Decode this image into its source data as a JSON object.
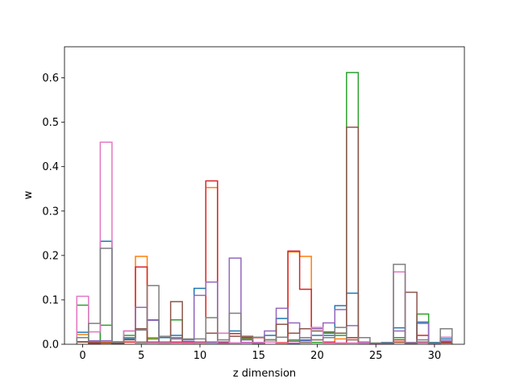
{
  "chart_data": {
    "type": "step-histogram",
    "xlabel": "z dimension",
    "ylabel": "w",
    "xlim": [
      -1.55,
      32.55
    ],
    "ylim": [
      0,
      0.67
    ],
    "x_ticks": [
      0,
      5,
      10,
      15,
      20,
      25,
      30
    ],
    "y_ticks": [
      0.0,
      0.1,
      0.2,
      0.3,
      0.4,
      0.5,
      0.6
    ],
    "bin_width": 1,
    "x": [
      0,
      1,
      2,
      3,
      4,
      5,
      6,
      7,
      8,
      9,
      10,
      11,
      12,
      13,
      14,
      15,
      16,
      17,
      18,
      19,
      20,
      21,
      22,
      23,
      24,
      25,
      26,
      27,
      28,
      29,
      30,
      31
    ],
    "series": [
      {
        "color": "#1f77b4",
        "values": [
          0.027,
          0.007,
          0.232,
          0.003,
          0.012,
          0.003,
          0.055,
          0.015,
          0.02,
          0.01,
          0.126,
          0.005,
          0.003,
          0.03,
          0.01,
          0.003,
          0.02,
          0.058,
          0.002,
          0.008,
          0.02,
          0.02,
          0.087,
          0.115,
          0.005,
          0.001,
          0.004,
          0.037,
          0.004,
          0.05,
          0.004,
          0.012
        ]
      },
      {
        "color": "#ff7f0e",
        "values": [
          0.022,
          0.005,
          0.005,
          0.002,
          0.015,
          0.198,
          0.015,
          0.005,
          0.005,
          0.004,
          0.003,
          0.353,
          0.005,
          0.024,
          0.004,
          0.002,
          0.01,
          0.004,
          0.208,
          0.198,
          0.004,
          0.004,
          0.012,
          0.01,
          0.004,
          0.001,
          0.002,
          0.004,
          0.004,
          0.004,
          0.002,
          0.004
        ]
      },
      {
        "color": "#2ca02c",
        "values": [
          0.088,
          0.004,
          0.043,
          0.003,
          0.02,
          0.005,
          0.012,
          0.004,
          0.055,
          0.006,
          0.005,
          0.003,
          0.003,
          0.003,
          0.012,
          0.002,
          0.01,
          0.003,
          0.007,
          0.004,
          0.004,
          0.028,
          0.02,
          0.612,
          0.005,
          0.001,
          0.002,
          0.015,
          0.002,
          0.068,
          0.002,
          0.005
        ]
      },
      {
        "color": "#d62728",
        "values": [
          0.005,
          0.002,
          0.003,
          0.002,
          0.005,
          0.174,
          0.005,
          0.003,
          0.005,
          0.004,
          0.005,
          0.368,
          0.005,
          0.024,
          0.015,
          0.015,
          0.005,
          0.003,
          0.21,
          0.124,
          0.01,
          0.005,
          0.003,
          0.015,
          0.003,
          0.001,
          0.003,
          0.01,
          0.003,
          0.02,
          0.002,
          0.005
        ]
      },
      {
        "color": "#9467bd",
        "values": [
          0.006,
          0.008,
          0.008,
          0.004,
          0.03,
          0.083,
          0.054,
          0.004,
          0.015,
          0.01,
          0.11,
          0.14,
          0.003,
          0.194,
          0.004,
          0.004,
          0.03,
          0.081,
          0.048,
          0.01,
          0.035,
          0.048,
          0.078,
          0.042,
          0.004,
          0.002,
          0.003,
          0.03,
          0.004,
          0.047,
          0.002,
          0.008
        ]
      },
      {
        "color": "#8c564b",
        "values": [
          0.005,
          0.004,
          0.003,
          0.002,
          0.01,
          0.035,
          0.005,
          0.005,
          0.096,
          0.003,
          0.005,
          0.025,
          0.025,
          0.018,
          0.018,
          0.003,
          0.01,
          0.045,
          0.025,
          0.035,
          0.03,
          0.025,
          0.025,
          0.489,
          0.003,
          0.001,
          0.002,
          0.005,
          0.117,
          0.005,
          0.001,
          0.003
        ]
      },
      {
        "color": "#e377c2",
        "values": [
          0.108,
          0.028,
          0.455,
          0.006,
          0.03,
          0.003,
          0.003,
          0.003,
          0.003,
          0.003,
          0.003,
          0.003,
          0.025,
          0.003,
          0.003,
          0.003,
          0.005,
          0.003,
          0.003,
          0.003,
          0.038,
          0.003,
          0.003,
          0.003,
          0.003,
          0.001,
          0.003,
          0.163,
          0.003,
          0.003,
          0.001,
          0.016
        ]
      },
      {
        "color": "#7f7f7f",
        "values": [
          0.015,
          0.047,
          0.216,
          0.005,
          0.015,
          0.032,
          0.132,
          0.018,
          0.012,
          0.012,
          0.012,
          0.06,
          0.01,
          0.07,
          0.01,
          0.016,
          0.01,
          0.016,
          0.01,
          0.015,
          0.01,
          0.015,
          0.038,
          0.01,
          0.015,
          0.003,
          0.003,
          0.18,
          0.003,
          0.01,
          0.003,
          0.035
        ]
      }
    ]
  }
}
